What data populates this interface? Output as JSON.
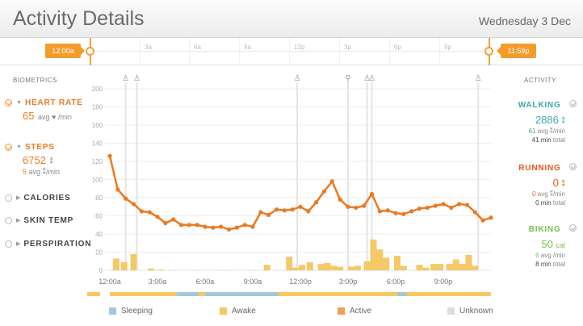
{
  "header": {
    "title": "Activity Details",
    "date": "Wednesday 3 Dec"
  },
  "scrubber": {
    "start_tag": "12:00a",
    "end_tag": "11:59p",
    "labels": [
      "3a",
      "6a",
      "9a",
      "12p",
      "3p",
      "6p",
      "9p"
    ],
    "accent": "#f39c2c"
  },
  "biometrics": {
    "heading": "BIOMETRICS",
    "heart_rate": {
      "label": "HEART RATE",
      "value": "65",
      "unit": "avg ♥ /min"
    },
    "steps": {
      "label": "STEPS",
      "value": "6752",
      "glyph": "⁑",
      "sub_value": "5",
      "sub_unit": "avg ⁑/min"
    },
    "calories": {
      "label": "CALORIES"
    },
    "skin_temp": {
      "label": "SKIN TEMP"
    },
    "perspiration": {
      "label": "PERSPIRATION"
    }
  },
  "activity": {
    "heading": "ACTIVITY",
    "walking": {
      "label": "WALKING",
      "value": "2886",
      "glyph": "⁑",
      "avg": "61",
      "avg_unit": "avg ⁑/min",
      "minutes": "41 min",
      "minutes_unit": "total",
      "color": "#3aa8a6"
    },
    "running": {
      "label": "RUNNING",
      "value": "0",
      "glyph": "⁑",
      "avg": "0",
      "avg_unit": "avg ⁑/min",
      "minutes": "0 min",
      "minutes_unit": "total",
      "color": "#e8561e"
    },
    "biking": {
      "label": "BIKING",
      "value": "50",
      "glyph": "cal",
      "avg": "6",
      "avg_unit": "avg /min",
      "minutes": "8 min",
      "minutes_unit": "total",
      "color": "#7cc04b"
    }
  },
  "legend": [
    {
      "label": "Sleeping",
      "color": "#a3c9d8"
    },
    {
      "label": "Awake",
      "color": "#f5c860"
    },
    {
      "label": "Active",
      "color": "#f0a05a"
    },
    {
      "label": "Unknown",
      "color": "#dddddd"
    }
  ],
  "chart_data": {
    "type": "line",
    "title": "",
    "xlabel": "",
    "ylabel": "",
    "x_unit": "hour",
    "xlim": [
      0,
      24
    ],
    "ylim": [
      0,
      200
    ],
    "y_ticks": [
      0,
      20,
      40,
      60,
      80,
      100,
      120,
      140,
      160,
      180,
      200
    ],
    "x_tick_labels": [
      "12:00a",
      "3:00a",
      "6:00a",
      "9:00a",
      "12:00p",
      "3:00p",
      "6:00p",
      "9:00p"
    ],
    "x_tick_positions": [
      0,
      3,
      6,
      9,
      12,
      15,
      18,
      21
    ],
    "grid": true,
    "series": [
      {
        "kind": "line",
        "color": "#ea7a22",
        "x": [
          0,
          0.5,
          1.0,
          1.5,
          2.0,
          2.5,
          3.0,
          3.5,
          4.0,
          4.5,
          5.0,
          5.5,
          6.0,
          6.5,
          7.0,
          7.5,
          8.0,
          8.5,
          9.0,
          9.5,
          10.0,
          10.5,
          11.0,
          11.5,
          12.0,
          12.5,
          13.0,
          13.5,
          14.0,
          14.5,
          15.0,
          15.5,
          16.0,
          16.5,
          17.0,
          17.5,
          18.0,
          18.5,
          19.0,
          19.5,
          20.0,
          20.5,
          21.0,
          21.5,
          22.0,
          22.5,
          23.0,
          23.5,
          24.0
        ],
        "y": [
          126,
          89,
          79,
          73,
          65,
          64,
          59,
          52,
          56,
          50,
          50,
          50,
          48,
          47,
          48,
          45,
          47,
          50,
          48,
          64,
          61,
          67,
          66,
          67,
          70,
          65,
          75,
          87,
          98,
          78,
          70,
          69,
          71,
          84,
          65,
          66,
          63,
          62,
          65,
          68,
          69,
          71,
          73,
          69,
          73,
          72,
          64,
          55,
          58
        ]
      },
      {
        "kind": "bar",
        "color": "#f5c868",
        "x": [
          0.4,
          0.9,
          1.5,
          2.6,
          3.2,
          9.9,
          11.3,
          11.7,
          12.1,
          12.6,
          13.3,
          13.7,
          14.1,
          14.5,
          15.2,
          15.6,
          16.2,
          16.6,
          17.0,
          17.4,
          18.1,
          18.5,
          19.5,
          19.9,
          20.4,
          20.8,
          21.4,
          21.8,
          22.2,
          22.6,
          23.0
        ],
        "y": [
          13,
          9,
          18,
          2,
          1,
          6,
          15,
          3,
          6,
          9,
          7,
          8,
          5,
          4,
          4,
          5,
          10,
          34,
          23,
          14,
          16,
          5,
          6,
          3,
          7,
          7,
          7,
          12,
          7,
          17,
          5
        ]
      }
    ],
    "activity_markers": [
      {
        "x": 1.0,
        "kind": "walking"
      },
      {
        "x": 1.7,
        "kind": "walking"
      },
      {
        "x": 11.8,
        "kind": "walking"
      },
      {
        "x": 15.0,
        "kind": "biking"
      },
      {
        "x": 16.2,
        "kind": "walking"
      },
      {
        "x": 16.5,
        "kind": "walking"
      },
      {
        "x": 23.2,
        "kind": "walking"
      }
    ],
    "state_bar": [
      {
        "from": 0,
        "to": 4.2,
        "state": "awake"
      },
      {
        "from": 4.2,
        "to": 5.6,
        "state": "sleeping"
      },
      {
        "from": 5.6,
        "to": 6.0,
        "state": "awake"
      },
      {
        "from": 6.0,
        "to": 10.6,
        "state": "sleeping"
      },
      {
        "from": 10.6,
        "to": 18.1,
        "state": "awake"
      },
      {
        "from": 18.1,
        "to": 18.7,
        "state": "sleeping"
      },
      {
        "from": 18.7,
        "to": 24,
        "state": "awake"
      }
    ]
  }
}
